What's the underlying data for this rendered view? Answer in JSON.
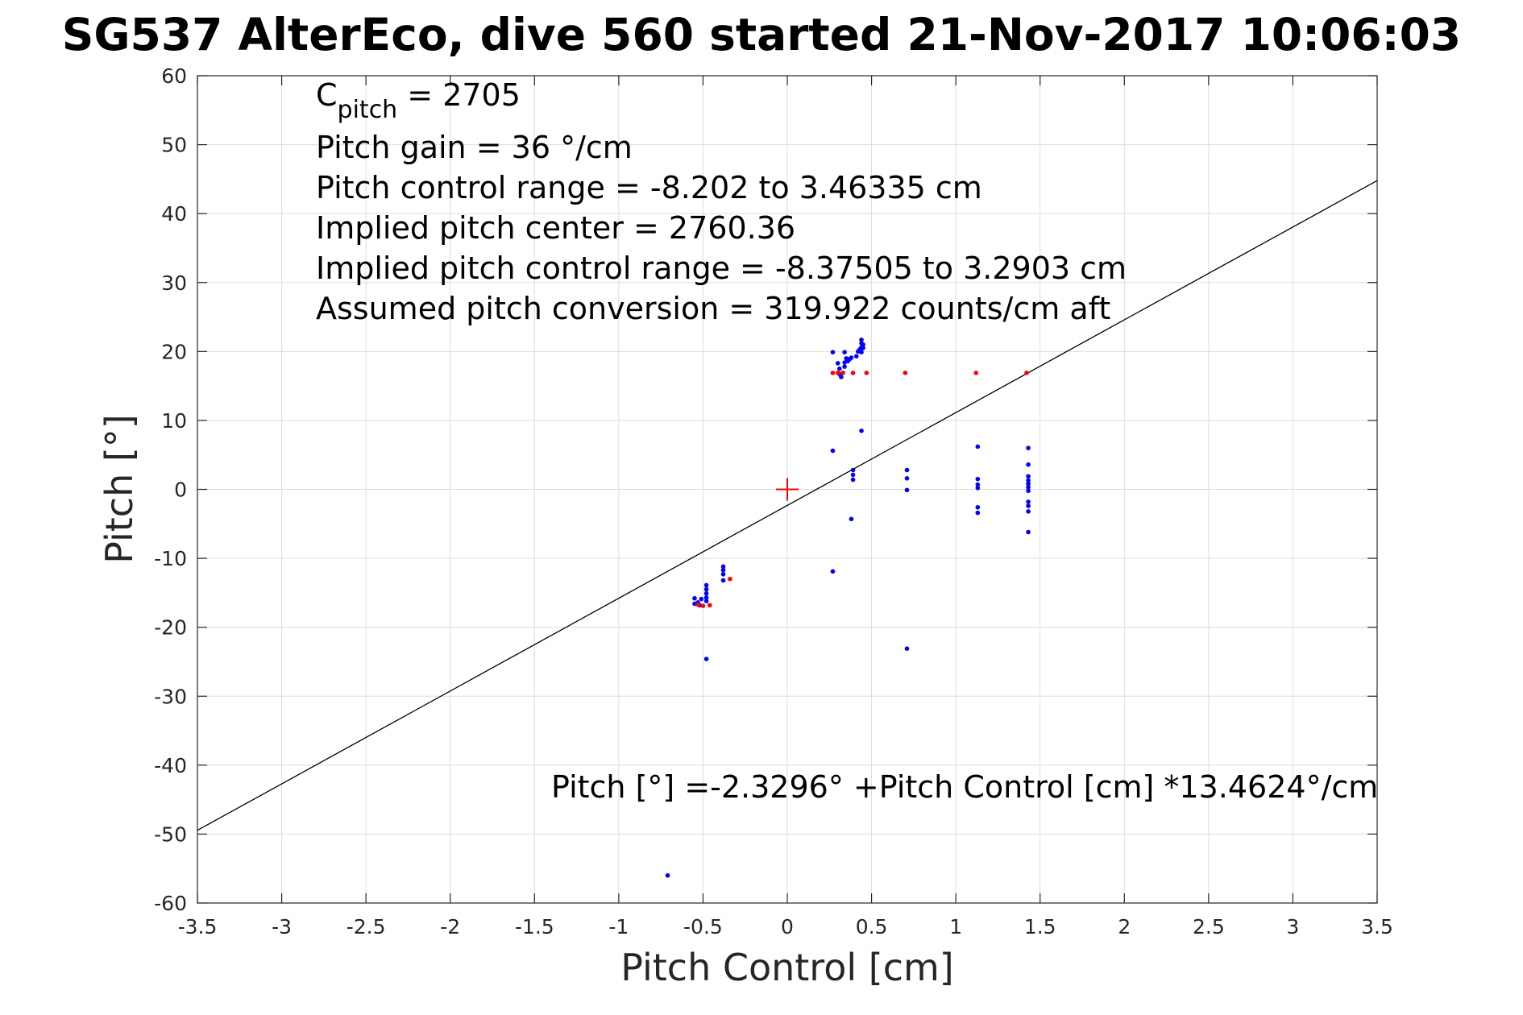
{
  "chart_data": {
    "type": "scatter",
    "title": "SG537 AlterEco, dive 560 started 21-Nov-2017 10:06:03",
    "xlabel": "Pitch Control [cm]",
    "ylabel": "Pitch [°]",
    "xlim": [
      -3.5,
      3.5
    ],
    "ylim": [
      -60,
      60
    ],
    "xticks": [
      -3.5,
      -3,
      -2.5,
      -2,
      -1.5,
      -1,
      -0.5,
      0,
      0.5,
      1,
      1.5,
      2,
      2.5,
      3,
      3.5
    ],
    "yticks": [
      -60,
      -50,
      -40,
      -30,
      -20,
      -10,
      0,
      10,
      20,
      30,
      40,
      50,
      60
    ],
    "grid": true,
    "annotations": {
      "cpitch_label": "C",
      "cpitch_subscript": "pitch",
      "cpitch_value": " = 2705",
      "pitch_gain": "Pitch gain = 36 °/cm",
      "pitch_control_range": "Pitch control range = -8.202 to 3.46335 cm",
      "implied_pitch_center": "Implied pitch center = 2760.36",
      "implied_pitch_control_range": "Implied pitch control range = -8.37505 to 3.2903 cm",
      "assumed_pitch_conversion": "Assumed pitch conversion = 319.922 counts/cm aft",
      "fit_equation": "Pitch [°] =-2.3296° +Pitch Control [cm] *13.4624°/cm"
    },
    "fit_line": {
      "intercept": -2.3296,
      "slope": 13.4624,
      "color": "#000000"
    },
    "center_marker": {
      "x": 0,
      "y": 0,
      "color": "#ff0000"
    },
    "series": [
      {
        "color": "#0000ff",
        "points": [
          [
            0.27,
            19.9
          ],
          [
            0.3,
            18.3
          ],
          [
            0.31,
            17.5
          ],
          [
            0.31,
            16.7
          ],
          [
            0.32,
            16.3
          ],
          [
            0.33,
            16.9
          ],
          [
            0.34,
            17.8
          ],
          [
            0.34,
            18.4
          ],
          [
            0.34,
            19.9
          ],
          [
            0.35,
            19.0
          ],
          [
            0.36,
            18.6
          ],
          [
            0.37,
            18.9
          ],
          [
            0.38,
            19.1
          ],
          [
            0.41,
            19.3
          ],
          [
            0.42,
            20.0
          ],
          [
            0.43,
            20.3
          ],
          [
            0.44,
            19.9
          ],
          [
            0.44,
            20.6
          ],
          [
            0.44,
            21.2
          ],
          [
            0.44,
            21.7
          ],
          [
            0.45,
            20.5
          ],
          [
            0.45,
            21.0
          ],
          [
            0.44,
            8.5
          ],
          [
            0.27,
            5.6
          ],
          [
            0.39,
            2.8
          ],
          [
            0.39,
            2.1
          ],
          [
            0.39,
            1.4
          ],
          [
            0.38,
            -4.3
          ],
          [
            0.27,
            -11.9
          ],
          [
            0.71,
            2.8
          ],
          [
            0.71,
            1.6
          ],
          [
            0.71,
            -0.1
          ],
          [
            0.71,
            -23.1
          ],
          [
            1.13,
            6.2
          ],
          [
            1.13,
            1.5
          ],
          [
            1.13,
            0.7
          ],
          [
            1.13,
            0.2
          ],
          [
            1.13,
            -2.6
          ],
          [
            1.13,
            -3.4
          ],
          [
            1.43,
            6.0
          ],
          [
            1.43,
            3.6
          ],
          [
            1.43,
            1.9
          ],
          [
            1.43,
            1.3
          ],
          [
            1.43,
            0.8
          ],
          [
            1.43,
            0.3
          ],
          [
            1.43,
            -0.2
          ],
          [
            1.43,
            -1.8
          ],
          [
            1.43,
            -2.4
          ],
          [
            1.43,
            -3.2
          ],
          [
            1.43,
            -6.2
          ],
          [
            -0.38,
            -11.2
          ],
          [
            -0.38,
            -11.7
          ],
          [
            -0.38,
            -12.3
          ],
          [
            -0.38,
            -13.2
          ],
          [
            -0.48,
            -13.9
          ],
          [
            -0.48,
            -14.5
          ],
          [
            -0.48,
            -15.1
          ],
          [
            -0.48,
            -15.7
          ],
          [
            -0.48,
            -16.2
          ],
          [
            -0.51,
            -15.9
          ],
          [
            -0.53,
            -16.4
          ],
          [
            -0.55,
            -15.8
          ],
          [
            -0.55,
            -16.6
          ],
          [
            -0.52,
            -16.8
          ],
          [
            -0.48,
            -24.6
          ],
          [
            -0.71,
            -56.0
          ]
        ]
      },
      {
        "color": "#ff0000",
        "points": [
          [
            0.27,
            16.9
          ],
          [
            0.3,
            16.9
          ],
          [
            0.33,
            16.9
          ],
          [
            0.39,
            16.9
          ],
          [
            0.47,
            16.9
          ],
          [
            0.7,
            16.9
          ],
          [
            1.12,
            16.9
          ],
          [
            1.42,
            16.9
          ],
          [
            -0.34,
            -13.0
          ],
          [
            -0.46,
            -16.8
          ],
          [
            -0.5,
            -16.9
          ],
          [
            -0.53,
            -16.7
          ]
        ]
      }
    ]
  }
}
